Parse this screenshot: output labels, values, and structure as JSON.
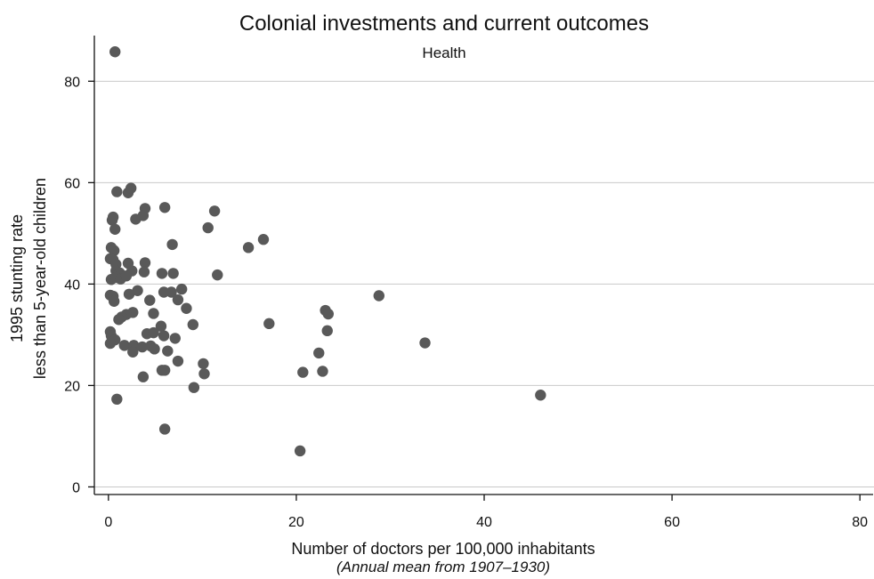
{
  "chart_data": {
    "type": "scatter",
    "title": "Colonial investments and current outcomes",
    "subtitle": "Health",
    "xlabel": "Number of doctors per 100,000 inhabitants",
    "xlabel_note": "(Annual mean from 1907–1930)",
    "ylabel_line1": "1995 stunting rate",
    "ylabel_line2": "less than 5-year-old children",
    "xlim": [
      -1.5,
      81.5
    ],
    "ylim": [
      -1.5,
      89
    ],
    "xticks": [
      "0",
      "20",
      "40",
      "60",
      "80"
    ],
    "yticks": [
      "0",
      "20",
      "40",
      "60",
      "80"
    ],
    "grid": true,
    "marker_color": "#595959",
    "points": [
      [
        0.7,
        85.8
      ],
      [
        0.9,
        58.2
      ],
      [
        2.1,
        58.0
      ],
      [
        2.4,
        58.9
      ],
      [
        3.9,
        54.9
      ],
      [
        6.0,
        55.1
      ],
      [
        11.3,
        54.4
      ],
      [
        2.9,
        52.8
      ],
      [
        3.7,
        53.5
      ],
      [
        0.4,
        52.6
      ],
      [
        0.5,
        53.2
      ],
      [
        10.6,
        51.1
      ],
      [
        0.7,
        50.8
      ],
      [
        16.5,
        48.8
      ],
      [
        6.8,
        47.8
      ],
      [
        14.9,
        47.2
      ],
      [
        0.3,
        47.2
      ],
      [
        0.6,
        46.6
      ],
      [
        0.2,
        45.0
      ],
      [
        0.5,
        44.8
      ],
      [
        0.8,
        43.9
      ],
      [
        2.1,
        44.1
      ],
      [
        3.9,
        44.2
      ],
      [
        0.8,
        42.6
      ],
      [
        1.2,
        42.2
      ],
      [
        2.5,
        42.6
      ],
      [
        3.8,
        42.4
      ],
      [
        5.7,
        42.1
      ],
      [
        6.9,
        42.1
      ],
      [
        11.6,
        41.8
      ],
      [
        0.3,
        40.9
      ],
      [
        0.8,
        41.3
      ],
      [
        1.3,
        41.0
      ],
      [
        1.9,
        41.6
      ],
      [
        3.1,
        38.7
      ],
      [
        2.2,
        38.0
      ],
      [
        5.9,
        38.4
      ],
      [
        6.7,
        38.4
      ],
      [
        7.8,
        39.0
      ],
      [
        0.2,
        37.8
      ],
      [
        0.5,
        37.6
      ],
      [
        0.6,
        36.6
      ],
      [
        4.4,
        36.8
      ],
      [
        7.4,
        36.9
      ],
      [
        28.8,
        37.7
      ],
      [
        8.3,
        35.2
      ],
      [
        23.1,
        34.8
      ],
      [
        23.4,
        34.1
      ],
      [
        2.6,
        34.4
      ],
      [
        1.9,
        34.0
      ],
      [
        1.4,
        33.5
      ],
      [
        1.1,
        33.0
      ],
      [
        4.8,
        34.2
      ],
      [
        9.0,
        32.0
      ],
      [
        17.1,
        32.2
      ],
      [
        5.6,
        31.7
      ],
      [
        23.3,
        30.8
      ],
      [
        0.2,
        30.6
      ],
      [
        0.3,
        29.8
      ],
      [
        0.7,
        29.0
      ],
      [
        0.2,
        28.3
      ],
      [
        4.1,
        30.2
      ],
      [
        4.8,
        30.4
      ],
      [
        5.9,
        29.8
      ],
      [
        7.1,
        29.3
      ],
      [
        33.7,
        28.4
      ],
      [
        1.7,
        27.9
      ],
      [
        2.7,
        27.9
      ],
      [
        2.6,
        26.6
      ],
      [
        3.6,
        27.6
      ],
      [
        4.5,
        27.8
      ],
      [
        4.9,
        27.2
      ],
      [
        6.3,
        26.8
      ],
      [
        22.4,
        26.4
      ],
      [
        7.4,
        24.8
      ],
      [
        10.1,
        24.3
      ],
      [
        5.7,
        23.0
      ],
      [
        6.0,
        23.0
      ],
      [
        22.8,
        22.8
      ],
      [
        20.7,
        22.6
      ],
      [
        10.2,
        22.3
      ],
      [
        3.7,
        21.7
      ],
      [
        9.1,
        19.6
      ],
      [
        0.9,
        17.3
      ],
      [
        46.0,
        18.1
      ],
      [
        6.0,
        11.4
      ],
      [
        20.4,
        7.1
      ]
    ]
  }
}
